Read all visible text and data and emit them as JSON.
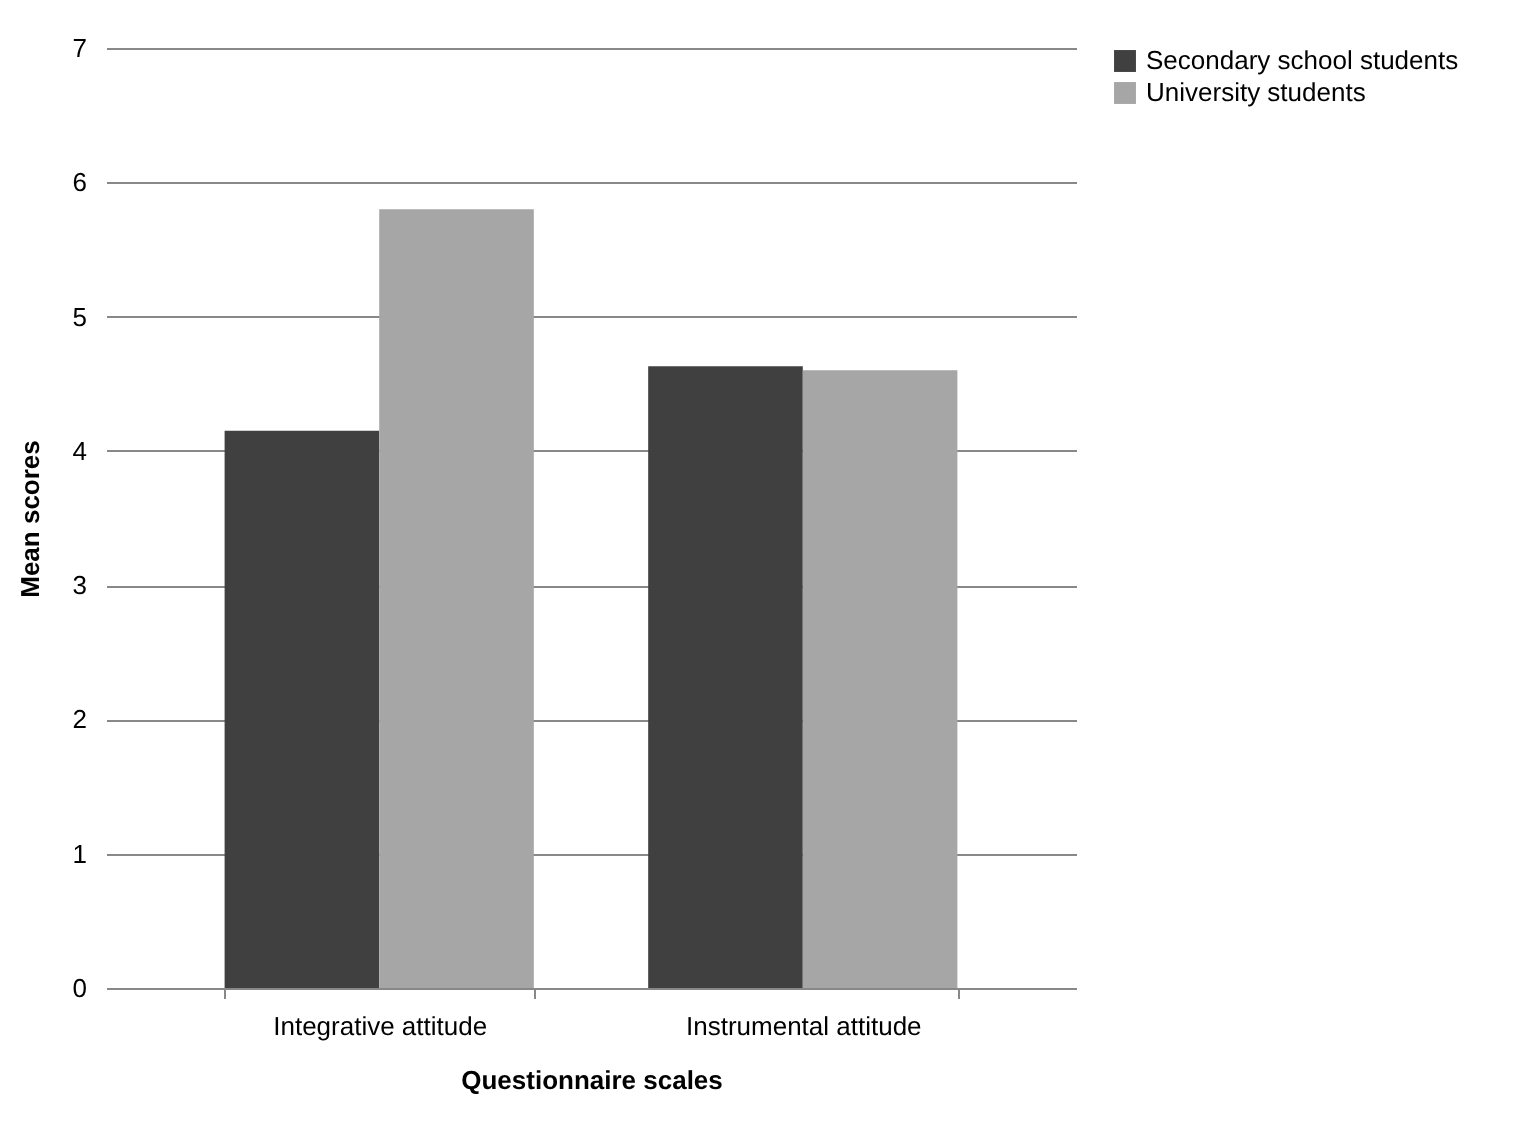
{
  "chart_data": {
    "type": "bar",
    "xlabel": "Questionnaire scales",
    "ylabel": "Mean scores",
    "categories": [
      "Integrative attitude",
      "Instrumental attitude"
    ],
    "series": [
      {
        "name": "Secondary school students",
        "color": "#404040",
        "values": [
          4.15,
          4.63
        ]
      },
      {
        "name": "University students",
        "color": "#a6a6a6",
        "values": [
          5.8,
          4.6
        ]
      }
    ],
    "ylim": [
      0,
      7
    ],
    "yticks": [
      0,
      1,
      2,
      3,
      4,
      5,
      6,
      7
    ],
    "grid": "y",
    "legend": "right"
  }
}
